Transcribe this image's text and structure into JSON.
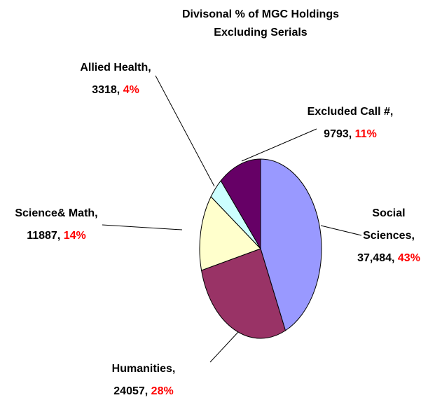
{
  "chart_data": {
    "type": "pie",
    "title": "Divisonal % of MGC Holdings Excluding Serials",
    "categories": [
      "Social Sciences,",
      "Humanities,",
      "Science& Math,",
      "Allied Health,",
      "Excluded Call #,"
    ],
    "values": [
      37484,
      24057,
      11887,
      3318,
      9793
    ],
    "value_labels": [
      "37,484,",
      "24057,",
      "11887,",
      "3318,",
      "9793,"
    ],
    "percentages": [
      43,
      28,
      14,
      4,
      11
    ],
    "percent_labels": [
      "43%",
      "28%",
      "14%",
      "4%",
      "11%"
    ],
    "colors": [
      "#9999ff",
      "#993366",
      "#ffffcc",
      "#ccffff",
      "#660066"
    ],
    "percent_color": "#ff0000"
  }
}
